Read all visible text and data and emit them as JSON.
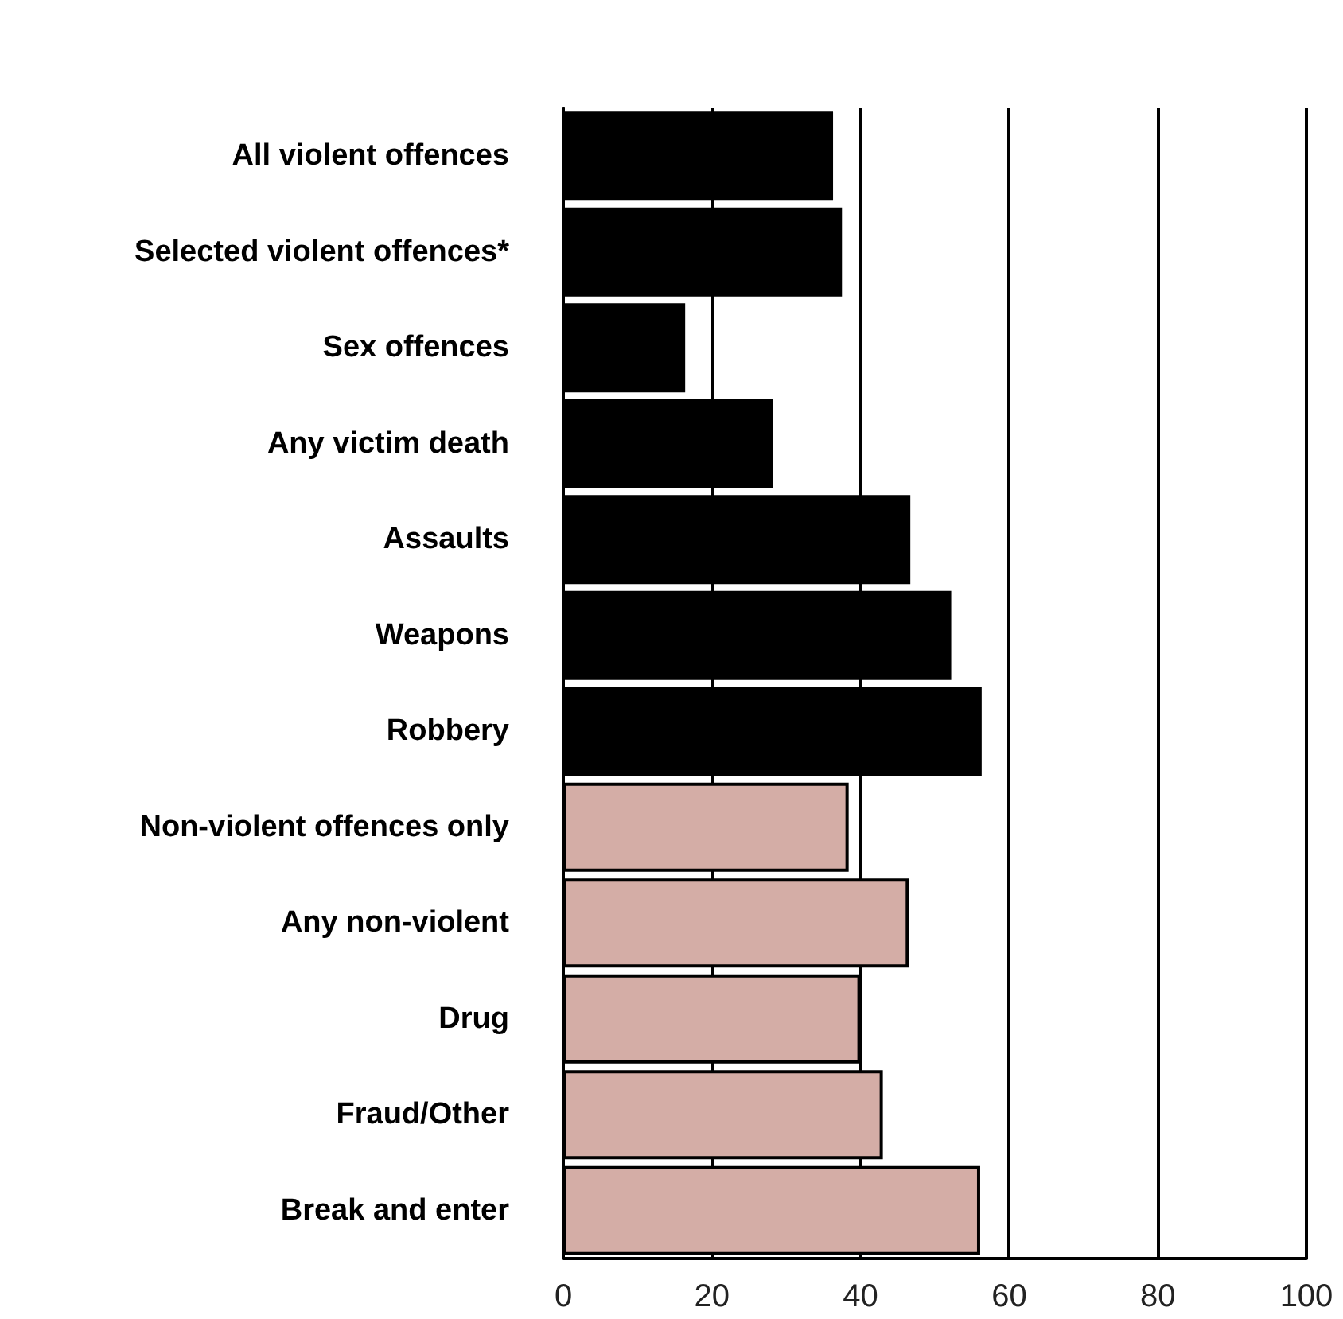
{
  "chart_data": {
    "type": "bar",
    "orientation": "horizontal",
    "categories": [
      "All violent offences",
      "Selected violent offences*",
      "Sex offences",
      "Any victim death",
      "Assaults",
      "Weapons",
      "Robbery",
      "Non-violent offences only",
      "Any non-violent",
      "Drug",
      "Fraud/Other",
      "Break and enter"
    ],
    "values": [
      36.3,
      37.5,
      16.4,
      28.2,
      46.7,
      52.2,
      56.3,
      38.4,
      46.5,
      40,
      43,
      56.1
    ],
    "colors": [
      "#000000",
      "#000000",
      "#000000",
      "#000000",
      "#000000",
      "#000000",
      "#000000",
      "#d4ada6",
      "#d4ada6",
      "#d4ada6",
      "#d4ada6",
      "#d4ada6"
    ],
    "xlim": [
      0,
      100
    ],
    "xticks": [
      0,
      20,
      40,
      60,
      80,
      100
    ],
    "grid": "x"
  }
}
